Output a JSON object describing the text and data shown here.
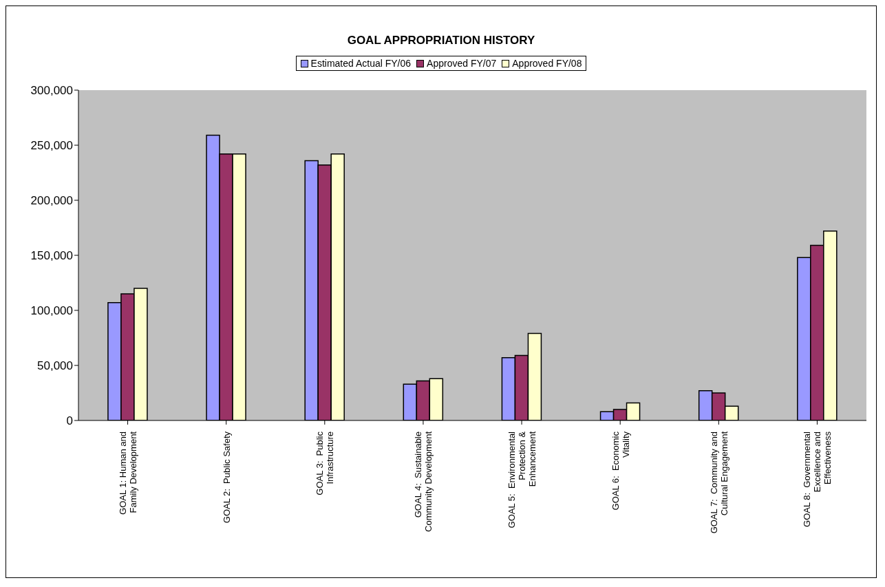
{
  "chart_data": {
    "type": "bar",
    "title": "GOAL APPROPRIATION HISTORY",
    "categories": [
      "GOAL 1: Human and Family Development",
      "GOAL 2:  Public Safety",
      "GOAL 3:  Public Infrastructure",
      "GOAL 4:  Sustainable Community Development",
      "GOAL 5:  Environmental Protection & Enhancement",
      "GOAL 6:  Economic Vitality",
      "GOAL 7:  Community and Cultural Engagement",
      "GOAL 8:  Governmental Excellence and Effectiveness"
    ],
    "series": [
      {
        "name": "Estimated Actual FY/06",
        "color": "#9999ff",
        "values": [
          107000,
          259000,
          236000,
          33000,
          57000,
          8000,
          27000,
          148000
        ]
      },
      {
        "name": "Approved FY/07",
        "color": "#993366",
        "values": [
          115000,
          242000,
          232000,
          36000,
          59000,
          10000,
          25000,
          159000
        ]
      },
      {
        "name": "Approved FY/08",
        "color": "#ffffcc",
        "values": [
          120000,
          242000,
          242000,
          38000,
          79000,
          16000,
          13000,
          172000
        ]
      }
    ],
    "ylim": [
      0,
      300000
    ],
    "yticks": [
      0,
      {
        "value": 50000,
        "label": "50,000"
      },
      {
        "value": 100000,
        "label": "100,000"
      },
      {
        "value": 150000,
        "label": "150,000"
      },
      {
        "value": 200000,
        "label": "200,000"
      },
      {
        "value": 250000,
        "label": "250,000"
      },
      {
        "value": 300000,
        "label": "300,000"
      }
    ],
    "grid": false,
    "legend": "top"
  }
}
